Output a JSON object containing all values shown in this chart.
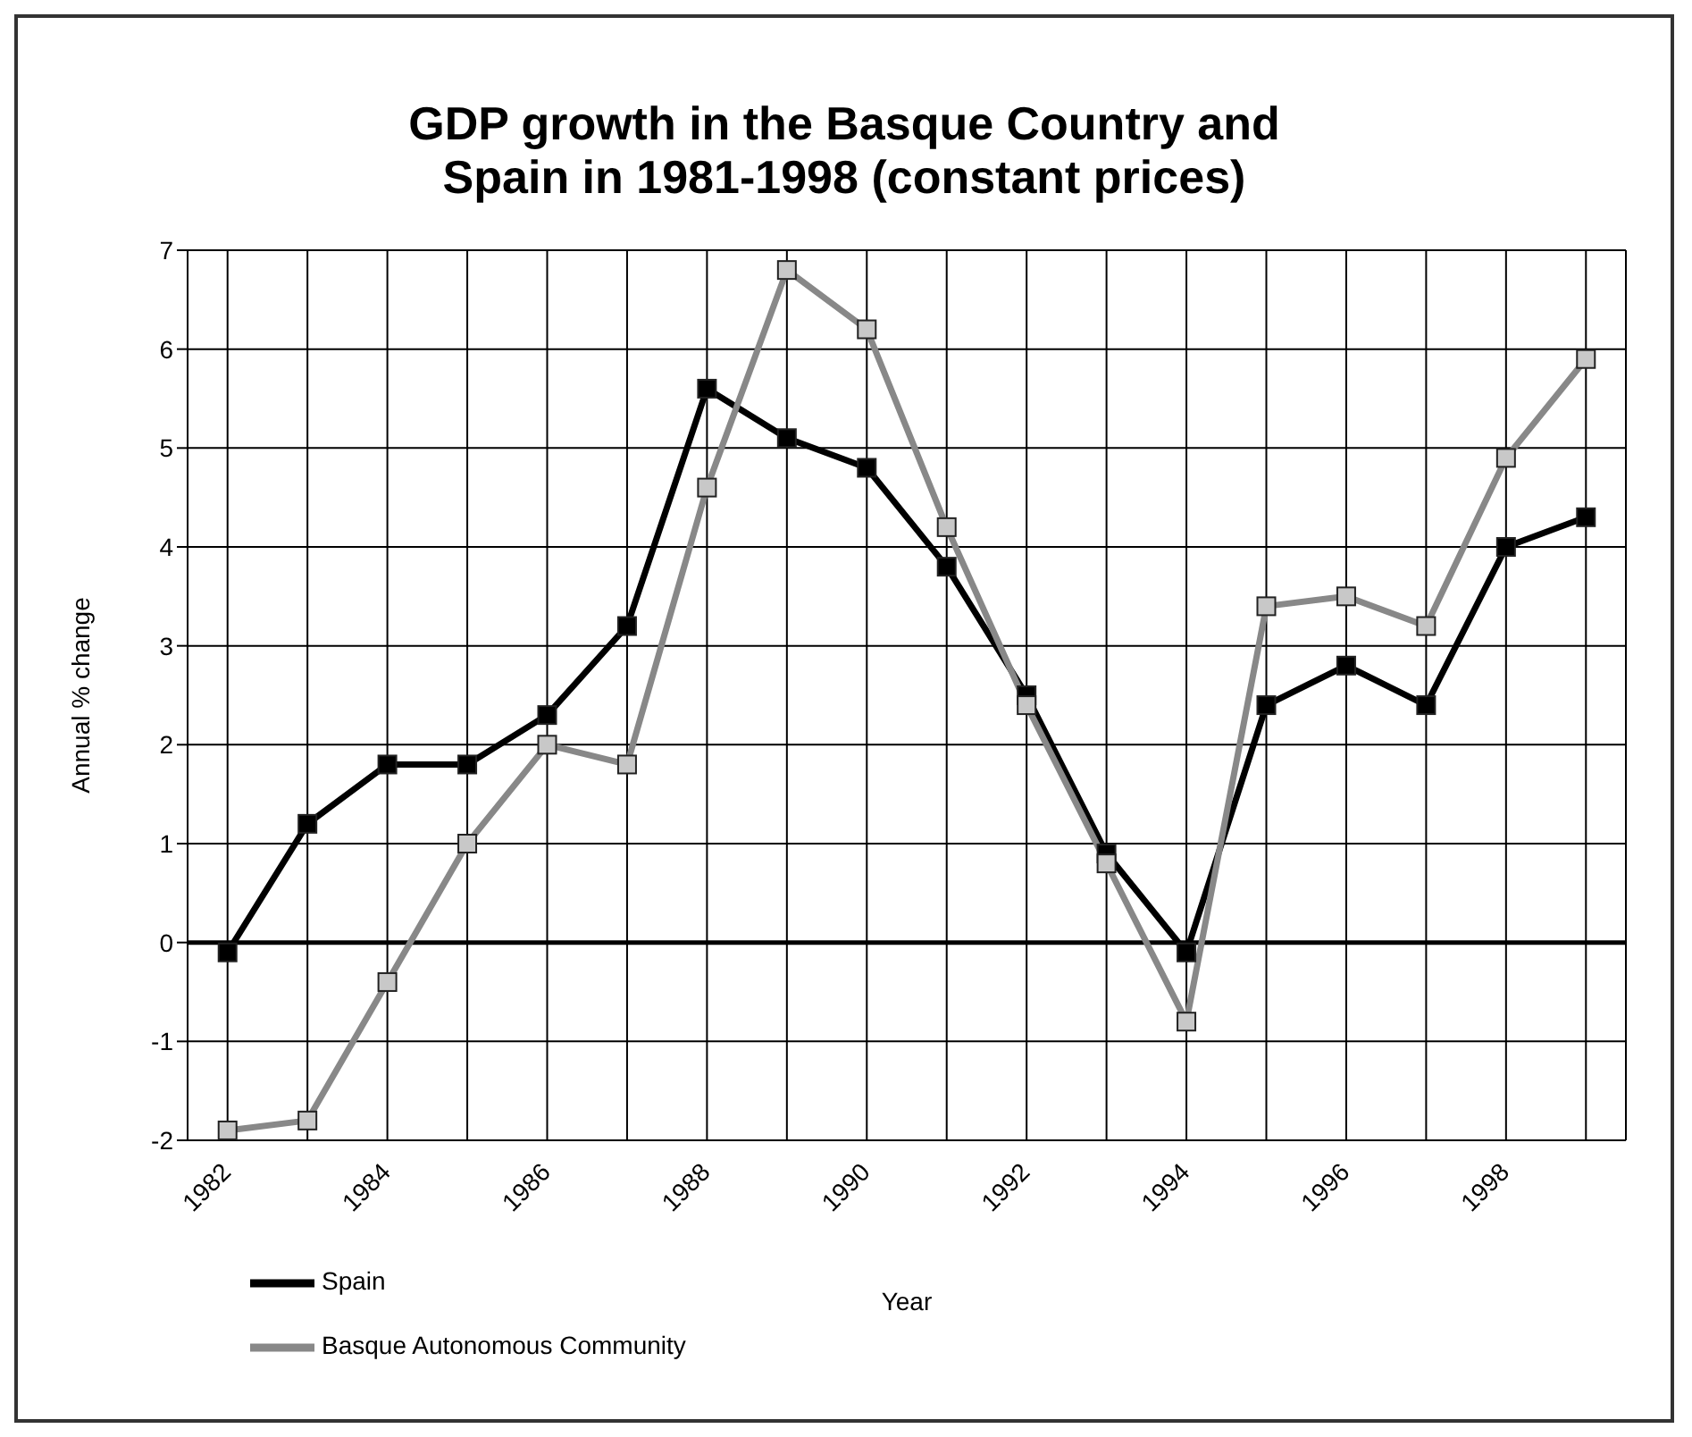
{
  "chart_data": {
    "type": "line",
    "title": "GDP growth in the Basque Country and\nSpain in 1981-1998 (constant prices)",
    "xlabel": "Year",
    "ylabel": "Annual % change",
    "x": [
      1982,
      1983,
      1984,
      1985,
      1986,
      1987,
      1988,
      1989,
      1990,
      1991,
      1992,
      1993,
      1994,
      1995,
      1996,
      1997,
      1998,
      1999
    ],
    "series": [
      {
        "name": "Spain",
        "color": "#000000",
        "values": [
          -0.1,
          1.2,
          1.8,
          1.8,
          2.3,
          3.2,
          5.6,
          5.1,
          4.8,
          3.8,
          2.5,
          0.9,
          -0.1,
          2.4,
          2.8,
          2.4,
          4.0,
          4.3
        ]
      },
      {
        "name": "Basque Autonomous Community",
        "color": "#888888",
        "values": [
          -1.9,
          -1.8,
          -0.4,
          1.0,
          2.0,
          1.8,
          4.6,
          6.8,
          6.2,
          4.2,
          2.4,
          0.8,
          -0.8,
          3.4,
          3.5,
          3.2,
          4.9,
          5.9
        ]
      }
    ],
    "xlim": [
      1981.5,
      1999.5
    ],
    "xticks": [
      1982,
      {
        "value": 1983,
        "label": null
      },
      1984,
      {
        "value": 1985,
        "label": null
      },
      1986,
      {
        "value": 1987,
        "label": null
      },
      1988,
      {
        "value": 1989,
        "label": null
      },
      1990,
      {
        "value": 1991,
        "label": null
      },
      1992,
      {
        "value": 1993,
        "label": null
      },
      1994,
      {
        "value": 1995,
        "label": null
      },
      1996,
      {
        "value": 1997,
        "label": null
      },
      1998,
      {
        "value": 1999,
        "label": null
      }
    ],
    "ylim": [
      -2,
      7
    ],
    "yticks": [
      -2,
      -1,
      0,
      1,
      2,
      3,
      4,
      5,
      6,
      7
    ],
    "ref_lines": [
      {
        "axis": "y",
        "value": 0
      }
    ],
    "grid": true,
    "legend": "bottom left",
    "marker": "square",
    "line_style": "solid"
  }
}
